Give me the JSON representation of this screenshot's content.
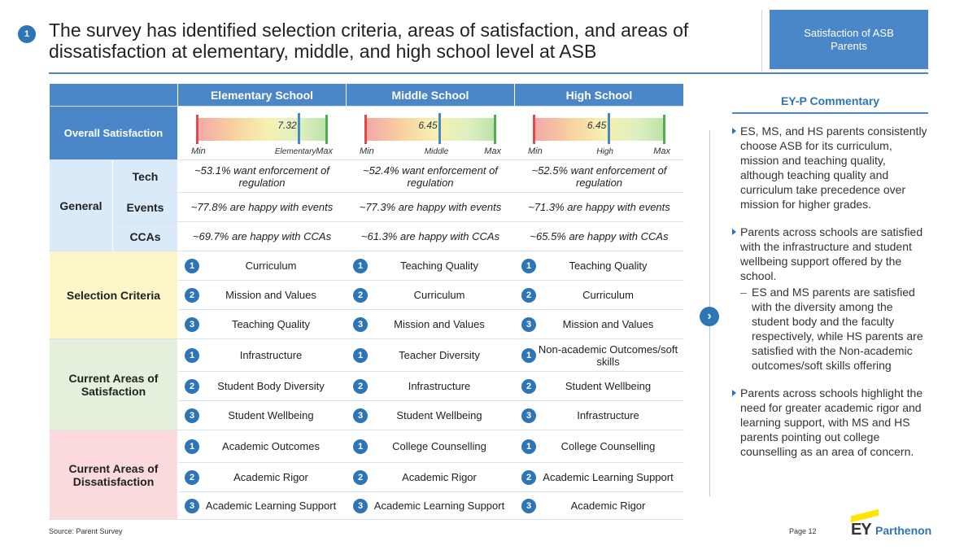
{
  "header": {
    "step_number": "1",
    "title": "The survey has identified selection criteria, areas of satisfaction, and areas of dissatisfaction at elementary, middle, and high school level at ASB",
    "tag": "Satisfaction of ASB Parents"
  },
  "table": {
    "columns": [
      "Elementary School",
      "Middle School",
      "High School"
    ],
    "overall": {
      "label": "Overall Satisfaction",
      "gauges": [
        {
          "value": "7.32",
          "level": 0.78,
          "min_label": "Min",
          "mid_label": "Elementary",
          "max_label": "Max"
        },
        {
          "value": "6.45",
          "level": 0.57,
          "min_label": "Min",
          "mid_label": "Middle",
          "max_label": "Max"
        },
        {
          "value": "6.45",
          "level": 0.57,
          "min_label": "Min",
          "mid_label": "High",
          "max_label": "Max"
        }
      ]
    },
    "general": {
      "label": "General",
      "rows": [
        {
          "label": "Tech",
          "values": [
            "~53.1% want enforcement of regulation",
            "~52.4% want enforcement of regulation",
            "~52.5% want enforcement of regulation"
          ]
        },
        {
          "label": "Events",
          "values": [
            "~77.8% are happy with events",
            "~77.3% are happy with events",
            "~71.3% are happy with events"
          ]
        },
        {
          "label": "CCAs",
          "values": [
            "~69.7% are happy with CCAs",
            "~61.3% are happy with CCAs",
            "~65.5% are happy with CCAs"
          ]
        }
      ]
    },
    "selection": {
      "label": "Selection Criteria",
      "rows": [
        {
          "rank": "1",
          "values": [
            "Curriculum",
            "Teaching Quality",
            "Teaching Quality"
          ]
        },
        {
          "rank": "2",
          "values": [
            "Mission and Values",
            "Curriculum",
            "Curriculum"
          ]
        },
        {
          "rank": "3",
          "values": [
            "Teaching Quality",
            "Mission and Values",
            "Mission and Values"
          ]
        }
      ]
    },
    "satisfaction": {
      "label": "Current Areas of Satisfaction",
      "rows": [
        {
          "rank": "1",
          "values": [
            "Infrastructure",
            "Teacher Diversity",
            "Non-academic Outcomes/soft skills"
          ]
        },
        {
          "rank": "2",
          "values": [
            "Student Body Diversity",
            "Infrastructure",
            "Student Wellbeing"
          ]
        },
        {
          "rank": "3",
          "values": [
            "Student Wellbeing",
            "Student Wellbeing",
            "Infrastructure"
          ]
        }
      ]
    },
    "dissatisfaction": {
      "label": "Current Areas of Dissatisfaction",
      "rows": [
        {
          "rank": "1",
          "values": [
            "Academic Outcomes",
            "College Counselling",
            "College Counselling"
          ]
        },
        {
          "rank": "2",
          "values": [
            "Academic Rigor",
            "Academic Rigor",
            "Academic Learning Support"
          ]
        },
        {
          "rank": "3",
          "values": [
            "Academic Learning Support",
            "Academic Learning Support",
            "Academic Rigor"
          ]
        }
      ]
    }
  },
  "commentary": {
    "title": "EY-P Commentary",
    "items": [
      {
        "text": "ES, MS, and HS parents consistently choose ASB for its curriculum, mission and teaching quality, although teaching quality and curriculum take precedence over mission for higher grades."
      },
      {
        "text": "Parents across schools are satisfied with the infrastructure and student wellbeing support offered by the school.",
        "sub": "ES and MS parents are satisfied with the diversity among the student body and the faculty respectively, while HS parents are satisfied with the Non-academic outcomes/soft skills offering"
      },
      {
        "text": "Parents across schools highlight the need for greater academic rigor and learning support, with MS and HS parents pointing out college counselling as an area of concern."
      }
    ]
  },
  "footer": {
    "source": "Source: Parent Survey",
    "page": "Page 12",
    "logo_ey": "EY",
    "logo_parthenon": "Parthenon"
  },
  "colors": {
    "accent": "#4a86c8",
    "selection_bg": "#fdf6c9",
    "satisfaction_bg": "#e3f0dc",
    "dissatisfaction_bg": "#fadada"
  }
}
